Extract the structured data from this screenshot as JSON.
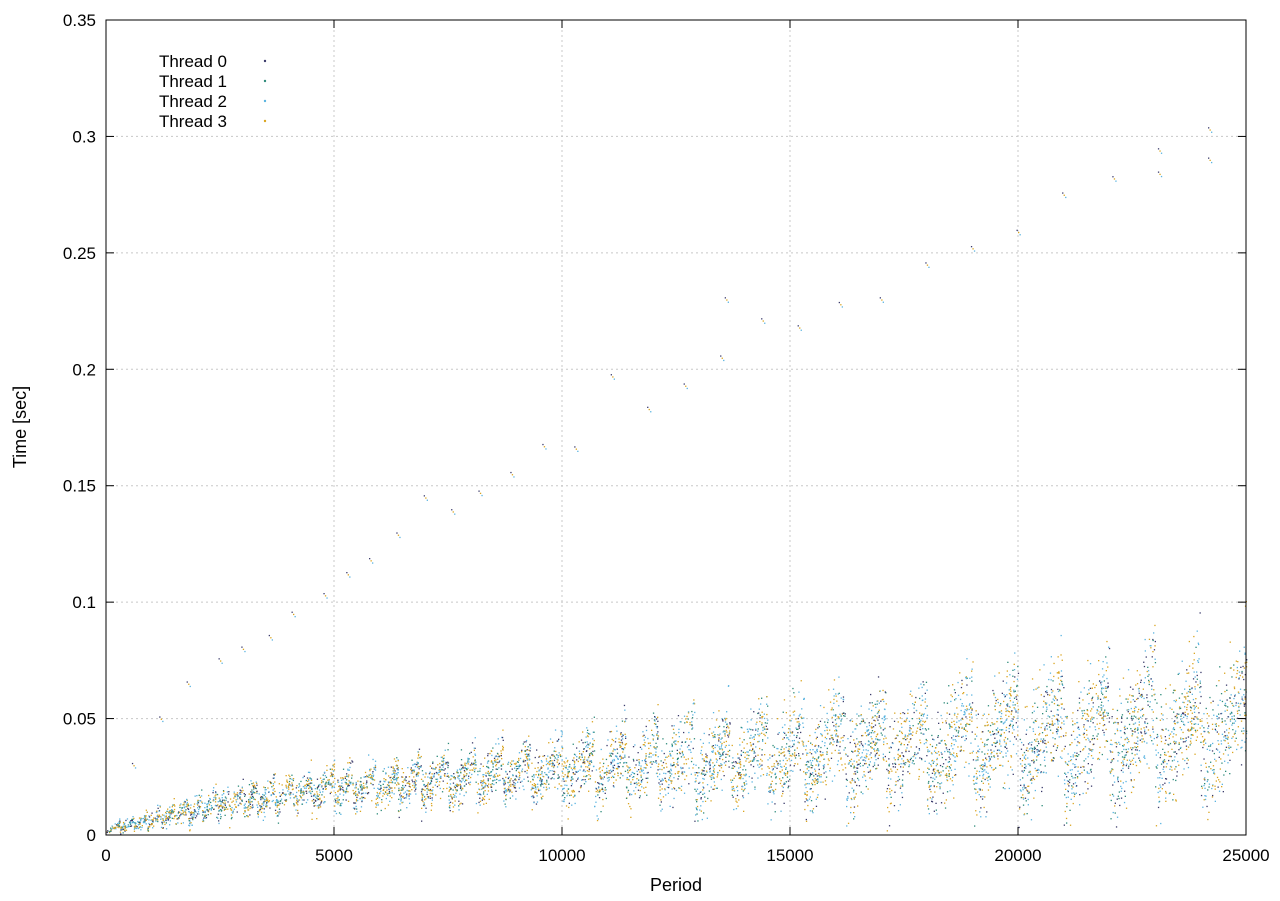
{
  "colors": {
    "thread0": "#3b3b6b",
    "thread1": "#2e8b7a",
    "thread2": "#5ab4e0",
    "thread3": "#daa520",
    "grid": "#c8c8c8",
    "axis": "#000000"
  },
  "chart_data": {
    "type": "scatter",
    "xlabel": "Period",
    "ylabel": "Time [sec]",
    "xlim": [
      0,
      25000
    ],
    "ylim": [
      0,
      0.35
    ],
    "xticks": [
      "0",
      "5000",
      "10000",
      "15000",
      "20000",
      "25000"
    ],
    "yticks": [
      "0",
      "0.05",
      "0.1",
      "0.15",
      "0.2",
      "0.25",
      "0.3",
      "0.35"
    ],
    "grid": true,
    "legend_position": "top-left",
    "marker": "tiny dot",
    "series": [
      {
        "name": "Thread 0",
        "color": "#3b3b6b"
      },
      {
        "name": "Thread 1",
        "color": "#2e8b7a"
      },
      {
        "name": "Thread 2",
        "color": "#5ab4e0"
      },
      {
        "name": "Thread 3",
        "color": "#daa520"
      }
    ],
    "pattern": {
      "sawtooth_cycle_periods": [
        0,
        300,
        600,
        900,
        1200,
        1500,
        1800,
        2100,
        2400,
        2700,
        3000,
        3300,
        3700,
        4100,
        4500,
        5000,
        5400,
        5900,
        6400,
        6900,
        7500,
        8100,
        8700,
        9300,
        10000,
        10700,
        11400,
        12100,
        12900,
        13700,
        14500,
        15300,
        16200,
        17100,
        18000,
        19000,
        20000,
        21000,
        22000,
        23000,
        24000,
        25000
      ],
      "band_low_at_x": [
        [
          0,
          0.001
        ],
        [
          5000,
          0.012
        ],
        [
          10000,
          0.015
        ],
        [
          15000,
          0.015
        ],
        [
          20000,
          0.015
        ],
        [
          25000,
          0.015
        ]
      ],
      "band_high_at_x": [
        [
          0,
          0.004
        ],
        [
          2500,
          0.02
        ],
        [
          5000,
          0.028
        ],
        [
          10000,
          0.04
        ],
        [
          15000,
          0.055
        ],
        [
          20000,
          0.065
        ],
        [
          25000,
          0.075
        ]
      ],
      "upper_outliers": [
        [
          600,
          0.03
        ],
        [
          1200,
          0.05
        ],
        [
          1800,
          0.065
        ],
        [
          2500,
          0.075
        ],
        [
          3000,
          0.08
        ],
        [
          3600,
          0.085
        ],
        [
          4100,
          0.095
        ],
        [
          4800,
          0.103
        ],
        [
          5300,
          0.112
        ],
        [
          5800,
          0.118
        ],
        [
          6400,
          0.129
        ],
        [
          7000,
          0.145
        ],
        [
          7600,
          0.139
        ],
        [
          8200,
          0.147
        ],
        [
          8900,
          0.155
        ],
        [
          9600,
          0.167
        ],
        [
          10300,
          0.166
        ],
        [
          11100,
          0.197
        ],
        [
          11900,
          0.183
        ],
        [
          12700,
          0.193
        ],
        [
          13500,
          0.205
        ],
        [
          13600,
          0.23
        ],
        [
          14400,
          0.221
        ],
        [
          15200,
          0.218
        ],
        [
          16100,
          0.228
        ],
        [
          17000,
          0.23
        ],
        [
          18000,
          0.245
        ],
        [
          19000,
          0.252
        ],
        [
          20000,
          0.259
        ],
        [
          21000,
          0.275
        ],
        [
          22100,
          0.282
        ],
        [
          23100,
          0.284
        ],
        [
          23100,
          0.294
        ],
        [
          24200,
          0.29
        ],
        [
          24200,
          0.303
        ]
      ]
    }
  }
}
